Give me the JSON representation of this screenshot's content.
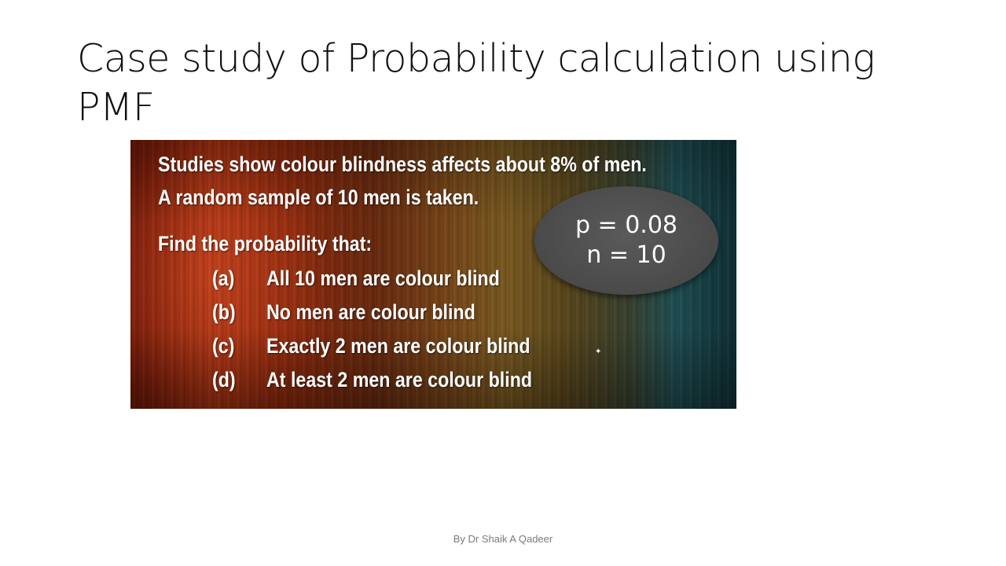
{
  "slide": {
    "title": "Case study of Probability calculation using PMF",
    "footer": "By Dr Shaik A Qadeer"
  },
  "problem": {
    "line1": "Studies show colour blindness affects about 8% of men.",
    "line2": "A random sample of 10 men is taken.",
    "prompt": "Find the probability that:",
    "questions": [
      {
        "label": "(a)",
        "text": "All 10 men are colour blind"
      },
      {
        "label": "(b)",
        "text": "No men are colour blind"
      },
      {
        "label": "(c)",
        "text": "Exactly 2 men are colour blind"
      },
      {
        "label": "(d)",
        "text": "At least 2 men are colour blind"
      }
    ],
    "params": {
      "p": "p = 0.08",
      "n": "n = 10"
    }
  }
}
